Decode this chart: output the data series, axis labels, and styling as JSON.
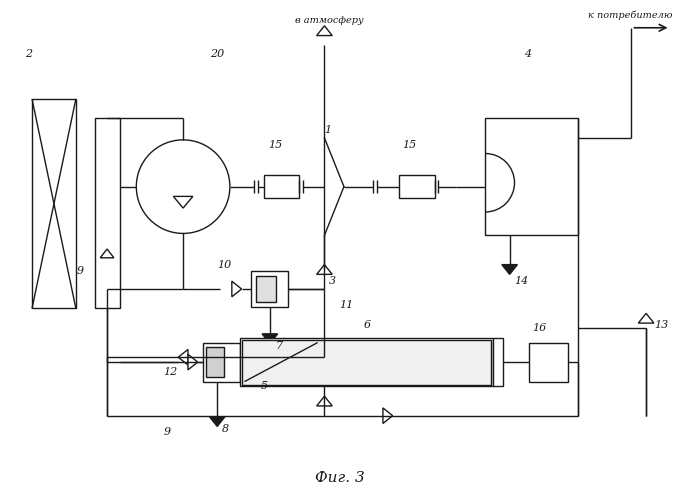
{
  "title": "Фиг. 3",
  "bg_color": "#ffffff",
  "line_color": "#1a1a1a",
  "lw": 1.0,
  "fig_width": 6.92,
  "fig_height": 5.0
}
